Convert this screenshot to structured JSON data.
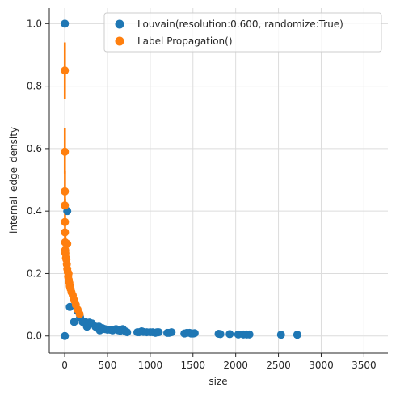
{
  "chart_data": {
    "type": "scatter",
    "xlabel": "size",
    "ylabel": "internal_edge_density",
    "xlim": [
      -180,
      3780
    ],
    "ylim": [
      -0.055,
      1.05
    ],
    "xticks": [
      0,
      500,
      1000,
      1500,
      2000,
      2500,
      3000,
      3500
    ],
    "xtick_labels": [
      "0",
      "500",
      "1000",
      "1500",
      "2000",
      "2500",
      "3000",
      "3500"
    ],
    "yticks": [
      0.0,
      0.2,
      0.4,
      0.6,
      0.8,
      1.0
    ],
    "ytick_labels": [
      "0.0",
      "0.2",
      "0.4",
      "0.6",
      "0.8",
      "1.0"
    ],
    "grid": true,
    "legend_position": "top-right",
    "series": [
      {
        "name": "Louvain(resolution:0.600, randomize:True)",
        "color": "#1f77b4",
        "points": [
          [
            2,
            1.0
          ],
          [
            2,
            0.0
          ],
          [
            30,
            0.4
          ],
          [
            60,
            0.093
          ],
          [
            110,
            0.045
          ],
          [
            150,
            0.08
          ],
          [
            180,
            0.06
          ],
          [
            210,
            0.045
          ],
          [
            240,
            0.045
          ],
          [
            260,
            0.03
          ],
          [
            290,
            0.043
          ],
          [
            320,
            0.04
          ],
          [
            360,
            0.03
          ],
          [
            400,
            0.03
          ],
          [
            410,
            0.018
          ],
          [
            440,
            0.025
          ],
          [
            470,
            0.022
          ],
          [
            500,
            0.02
          ],
          [
            530,
            0.02
          ],
          [
            560,
            0.018
          ],
          [
            600,
            0.022
          ],
          [
            630,
            0.018
          ],
          [
            650,
            0.017
          ],
          [
            680,
            0.022
          ],
          [
            710,
            0.015
          ],
          [
            730,
            0.012
          ],
          [
            850,
            0.012
          ],
          [
            870,
            0.012
          ],
          [
            900,
            0.015
          ],
          [
            920,
            0.013
          ],
          [
            960,
            0.012
          ],
          [
            1000,
            0.012
          ],
          [
            1030,
            0.012
          ],
          [
            1060,
            0.01
          ],
          [
            1080,
            0.012
          ],
          [
            1100,
            0.012
          ],
          [
            1200,
            0.01
          ],
          [
            1220,
            0.01
          ],
          [
            1250,
            0.012
          ],
          [
            1400,
            0.008
          ],
          [
            1430,
            0.01
          ],
          [
            1460,
            0.01
          ],
          [
            1480,
            0.008
          ],
          [
            1500,
            0.008
          ],
          [
            1520,
            0.009
          ],
          [
            1800,
            0.007
          ],
          [
            1820,
            0.006
          ],
          [
            1930,
            0.006
          ],
          [
            2030,
            0.005
          ],
          [
            2090,
            0.005
          ],
          [
            2130,
            0.005
          ],
          [
            2160,
            0.005
          ],
          [
            2530,
            0.004
          ],
          [
            2720,
            0.004
          ]
        ]
      },
      {
        "name": "Label Propagation()",
        "color": "#ff7f0e",
        "points": [
          [
            2,
            0.85
          ],
          [
            2,
            0.59
          ],
          [
            2,
            0.463
          ],
          [
            2,
            0.418
          ],
          [
            3,
            0.365
          ],
          [
            3,
            0.332
          ],
          [
            5,
            0.3
          ],
          [
            6,
            0.275
          ],
          [
            8,
            0.265
          ],
          [
            15,
            0.25
          ],
          [
            20,
            0.245
          ],
          [
            25,
            0.23
          ],
          [
            30,
            0.215
          ],
          [
            35,
            0.205
          ],
          [
            40,
            0.19
          ],
          [
            48,
            0.18
          ],
          [
            55,
            0.17
          ],
          [
            60,
            0.16
          ],
          [
            70,
            0.15
          ],
          [
            80,
            0.14
          ],
          [
            95,
            0.13
          ],
          [
            110,
            0.115
          ],
          [
            130,
            0.1
          ],
          [
            150,
            0.085
          ],
          [
            175,
            0.07
          ],
          [
            30,
            0.295
          ],
          [
            45,
            0.2
          ],
          [
            65,
            0.155
          ]
        ],
        "error_bars": [
          {
            "x": 2,
            "low": 0.76,
            "high": 0.94
          },
          {
            "x": 2,
            "low": 0.52,
            "high": 0.665
          },
          {
            "x": 3,
            "low": 0.4,
            "high": 0.53
          },
          {
            "x": 4,
            "low": 0.3,
            "high": 0.44
          },
          {
            "x": 8,
            "low": 0.24,
            "high": 0.33
          },
          {
            "x": 20,
            "low": 0.215,
            "high": 0.28
          },
          {
            "x": 35,
            "low": 0.18,
            "high": 0.235
          },
          {
            "x": 55,
            "low": 0.145,
            "high": 0.195
          },
          {
            "x": 80,
            "low": 0.125,
            "high": 0.16
          },
          {
            "x": 110,
            "low": 0.1,
            "high": 0.13
          },
          {
            "x": 150,
            "low": 0.07,
            "high": 0.1
          }
        ]
      }
    ]
  }
}
